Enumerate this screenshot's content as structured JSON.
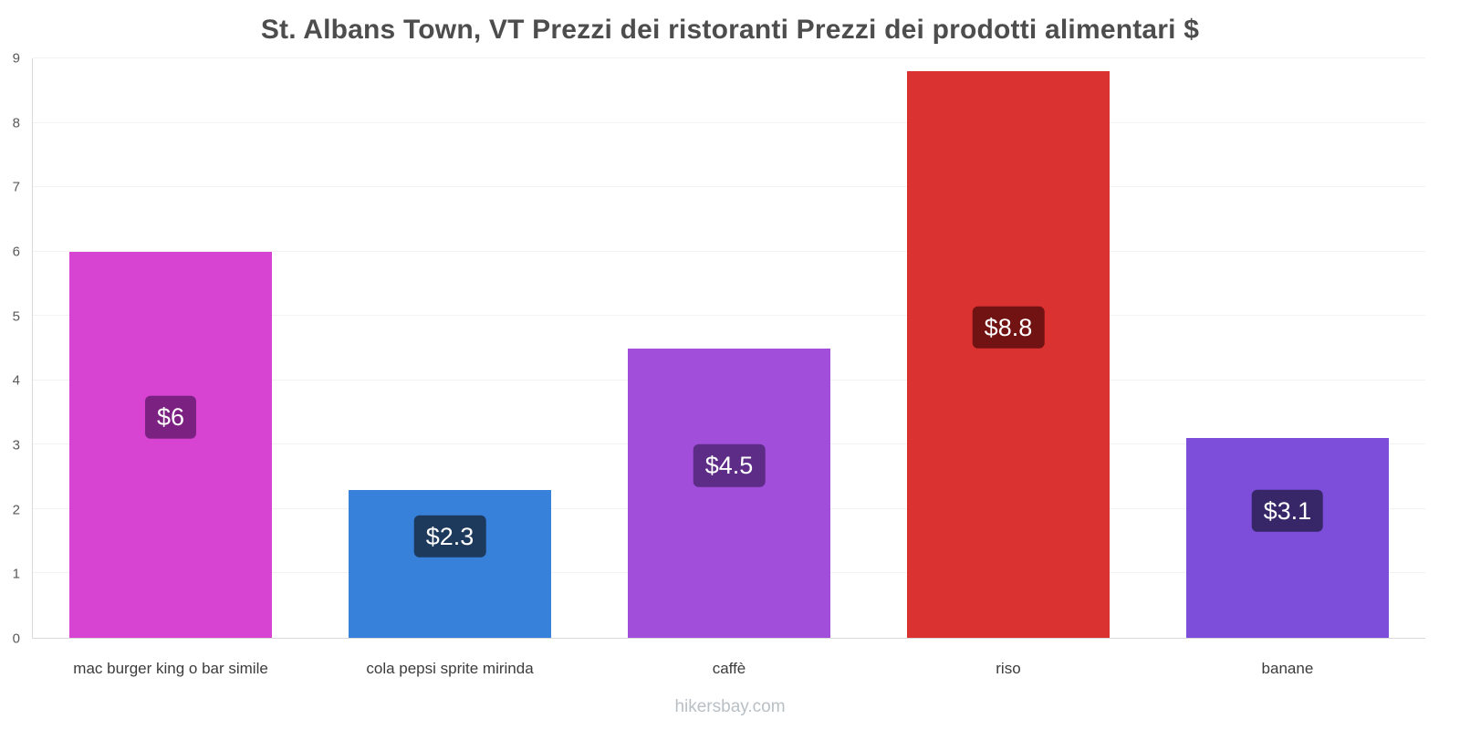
{
  "footer": "hikersbay.com",
  "chart_data": {
    "type": "bar",
    "title": "St. Albans Town, VT Prezzi dei ristoranti Prezzi dei prodotti alimentari $",
    "categories": [
      "mac burger king o bar simile",
      "cola pepsi sprite mirinda",
      "caffè",
      "riso",
      "banane"
    ],
    "values": [
      6,
      2.3,
      4.5,
      8.8,
      3.1
    ],
    "value_labels": [
      "$6",
      "$2.3",
      "$4.5",
      "$8.8",
      "$3.1"
    ],
    "bar_colors": [
      "#d644d1",
      "#3781db",
      "#a14fdb",
      "#d93231",
      "#7c4ed9"
    ],
    "label_bg_colors": [
      "#7b2181",
      "#1d3a5c",
      "#5d2c86",
      "#701312",
      "#372768"
    ],
    "currency": "$",
    "xlabel": "",
    "ylabel": "",
    "ylim": [
      0,
      9
    ],
    "yticks": [
      0,
      1,
      2,
      3,
      4,
      5,
      6,
      7,
      8,
      9
    ],
    "grid": "faint-horizontal",
    "legend": "none"
  }
}
